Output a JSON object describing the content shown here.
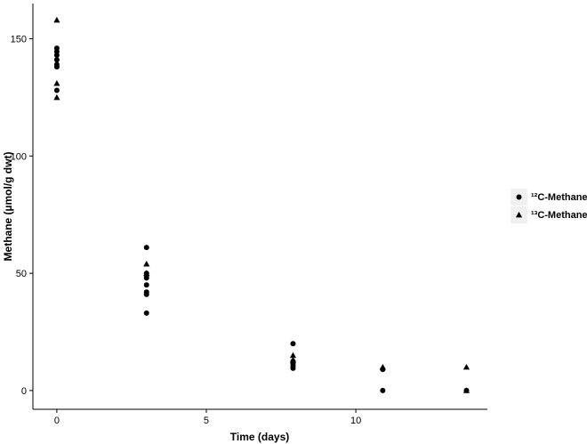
{
  "chart_data": {
    "type": "scatter",
    "xlabel": "Time (days)",
    "ylabel": "Methane (µmol/g dwt)",
    "xlim": [
      -0.8,
      14.4
    ],
    "ylim": [
      -8,
      165
    ],
    "x_ticks": [
      0,
      5,
      10
    ],
    "y_ticks": [
      0,
      50,
      100,
      150
    ],
    "grid": false,
    "legend_position": "right",
    "series": [
      {
        "name": "¹²C-Methane",
        "marker": "circle",
        "points": [
          {
            "x": 0,
            "y": 146
          },
          {
            "x": 0,
            "y": 144.5
          },
          {
            "x": 0,
            "y": 143
          },
          {
            "x": 0,
            "y": 141
          },
          {
            "x": 0,
            "y": 139
          },
          {
            "x": 0,
            "y": 138
          },
          {
            "x": 0,
            "y": 128
          },
          {
            "x": 3,
            "y": 61
          },
          {
            "x": 3,
            "y": 50
          },
          {
            "x": 3,
            "y": 49
          },
          {
            "x": 3,
            "y": 48
          },
          {
            "x": 3,
            "y": 45
          },
          {
            "x": 3,
            "y": 42
          },
          {
            "x": 3,
            "y": 41
          },
          {
            "x": 3,
            "y": 33
          },
          {
            "x": 7.9,
            "y": 20
          },
          {
            "x": 7.9,
            "y": 12.5
          },
          {
            "x": 7.9,
            "y": 11.5
          },
          {
            "x": 7.9,
            "y": 10.5
          },
          {
            "x": 7.9,
            "y": 9.5
          },
          {
            "x": 10.9,
            "y": 9
          },
          {
            "x": 10.9,
            "y": 0
          },
          {
            "x": 13.7,
            "y": 0
          }
        ]
      },
      {
        "name": "¹³C-Methane",
        "marker": "triangle",
        "points": [
          {
            "x": 0,
            "y": 158
          },
          {
            "x": 0,
            "y": 131
          },
          {
            "x": 0,
            "y": 125
          },
          {
            "x": 3,
            "y": 54
          },
          {
            "x": 3,
            "y": 50
          },
          {
            "x": 7.9,
            "y": 15
          },
          {
            "x": 7.9,
            "y": 13
          },
          {
            "x": 10.9,
            "y": 10
          },
          {
            "x": 13.7,
            "y": 10
          },
          {
            "x": 13.7,
            "y": 0
          }
        ]
      }
    ]
  }
}
